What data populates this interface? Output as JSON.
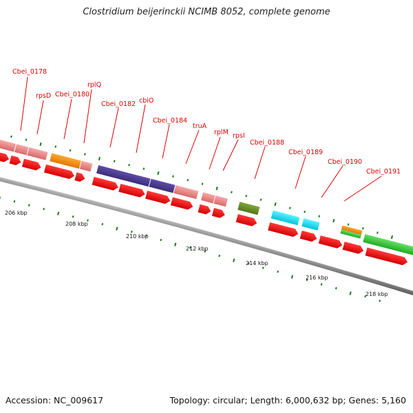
{
  "title": "Clostridium beijerinckii NCIMB 8052, complete genome",
  "footer": {
    "accession": "Accession: NC_009617",
    "summary": "Topology: circular; Length: 6,000,632 bp; Genes: 5,160"
  },
  "gene_labels": [
    "Cbei_0178",
    "rpsD",
    "Cbei_0180",
    "rplQ",
    "Cbei_0182",
    "cbiO",
    "Cbei_0184",
    "truA",
    "rplM",
    "rpsI",
    "Cbei_0188",
    "Cbei_0189",
    "Cbei_0190",
    "Cbei_0191"
  ],
  "scale_labels": [
    "206 kbp",
    "208 kbp",
    "210 kbp",
    "212 kbp",
    "214 kbp",
    "216 kbp",
    "218 kbp"
  ],
  "colors": {
    "backbone": "#7a7a7a",
    "cds": "#ff0000",
    "pink": "#f08888",
    "orange": "#ff8c00",
    "purple": "#4b3b8c",
    "olive": "#6b8e23",
    "cyan": "#00e5ff",
    "green": "#33cc33",
    "tick": "#1a7a1a",
    "label": "#e00000"
  }
}
